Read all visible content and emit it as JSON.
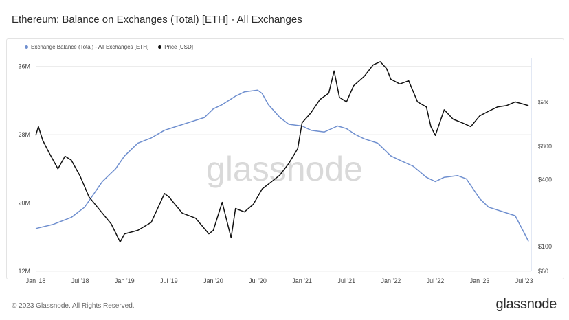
{
  "title": "Ethereum: Balance on Exchanges (Total) [ETH] - All Exchanges",
  "legend": {
    "series1": "Exchange Balance (Total) - All Exchanges [ETH]",
    "series2": "Price [USD]"
  },
  "watermark": "glassnode",
  "footer": {
    "copyright": "© 2023 Glassnode. All Rights Reserved.",
    "brand": "glassnode"
  },
  "colors": {
    "balance": "#6f8fcf",
    "price": "#111111",
    "grid": "#ececec"
  },
  "chart_data": {
    "type": "line",
    "title": "Ethereum: Balance on Exchanges (Total) [ETH] - All Exchanges",
    "x_ticks": [
      "Jan '18",
      "Jul '18",
      "Jan '19",
      "Jul '19",
      "Jan '20",
      "Jul '20",
      "Jan '21",
      "Jul '21",
      "Jan '22",
      "Jul '22",
      "Jan '23",
      "Jul '23"
    ],
    "y_left": {
      "ticks": [
        "12M",
        "20M",
        "28M",
        "36M"
      ],
      "range": [
        12,
        37
      ]
    },
    "y_right": {
      "ticks": [
        "$60",
        "$100",
        "$400",
        "$800",
        "$2k"
      ],
      "scale": "log",
      "range": [
        60,
        5000
      ]
    },
    "series": [
      {
        "name": "Exchange Balance (Total) - All Exchanges [ETH]",
        "axis": "left",
        "x": [
          2018.0,
          2018.2,
          2018.4,
          2018.55,
          2018.75,
          2018.9,
          2019.0,
          2019.15,
          2019.3,
          2019.45,
          2019.6,
          2019.75,
          2019.9,
          2020.0,
          2020.1,
          2020.25,
          2020.35,
          2020.5,
          2020.55,
          2020.62,
          2020.75,
          2020.85,
          2021.0,
          2021.1,
          2021.25,
          2021.4,
          2021.5,
          2021.6,
          2021.7,
          2021.85,
          2022.0,
          2022.1,
          2022.25,
          2022.4,
          2022.5,
          2022.6,
          2022.75,
          2022.85,
          2023.0,
          2023.1,
          2023.25,
          2023.4,
          2023.5,
          2023.55
        ],
        "values": [
          17.0,
          17.5,
          18.3,
          19.5,
          22.5,
          24.0,
          25.5,
          27.0,
          27.6,
          28.5,
          29.0,
          29.5,
          30.0,
          31.0,
          31.5,
          32.5,
          33.0,
          33.2,
          32.8,
          31.5,
          30.0,
          29.2,
          29.0,
          28.5,
          28.3,
          29.0,
          28.7,
          28.0,
          27.5,
          27.0,
          25.5,
          25.0,
          24.3,
          23.0,
          22.5,
          23.0,
          23.2,
          22.8,
          20.5,
          19.5,
          19.0,
          18.5,
          16.5,
          15.5
        ]
      },
      {
        "name": "Price [USD]",
        "axis": "right",
        "x": [
          2018.0,
          2018.03,
          2018.08,
          2018.15,
          2018.25,
          2018.33,
          2018.4,
          2018.5,
          2018.6,
          2018.75,
          2018.85,
          2018.95,
          2019.0,
          2019.15,
          2019.3,
          2019.45,
          2019.5,
          2019.65,
          2019.8,
          2019.95,
          2020.0,
          2020.1,
          2020.2,
          2020.25,
          2020.35,
          2020.45,
          2020.55,
          2020.65,
          2020.75,
          2020.85,
          2020.95,
          2021.0,
          2021.1,
          2021.2,
          2021.3,
          2021.36,
          2021.42,
          2021.5,
          2021.58,
          2021.7,
          2021.8,
          2021.88,
          2021.95,
          2022.0,
          2022.1,
          2022.2,
          2022.3,
          2022.4,
          2022.45,
          2022.5,
          2022.6,
          2022.7,
          2022.8,
          2022.9,
          2023.0,
          2023.1,
          2023.2,
          2023.3,
          2023.4,
          2023.5,
          2023.55
        ],
        "values": [
          1000,
          1200,
          900,
          700,
          500,
          650,
          600,
          430,
          280,
          200,
          160,
          110,
          130,
          140,
          165,
          300,
          280,
          200,
          180,
          130,
          140,
          250,
          120,
          220,
          205,
          240,
          330,
          380,
          440,
          560,
          760,
          1300,
          1600,
          2100,
          2400,
          3800,
          2200,
          2000,
          2800,
          3400,
          4300,
          4600,
          4000,
          3200,
          2900,
          3100,
          2000,
          1800,
          1200,
          1000,
          1700,
          1400,
          1300,
          1200,
          1500,
          1650,
          1800,
          1850,
          2000,
          1900,
          1850
        ]
      }
    ]
  }
}
